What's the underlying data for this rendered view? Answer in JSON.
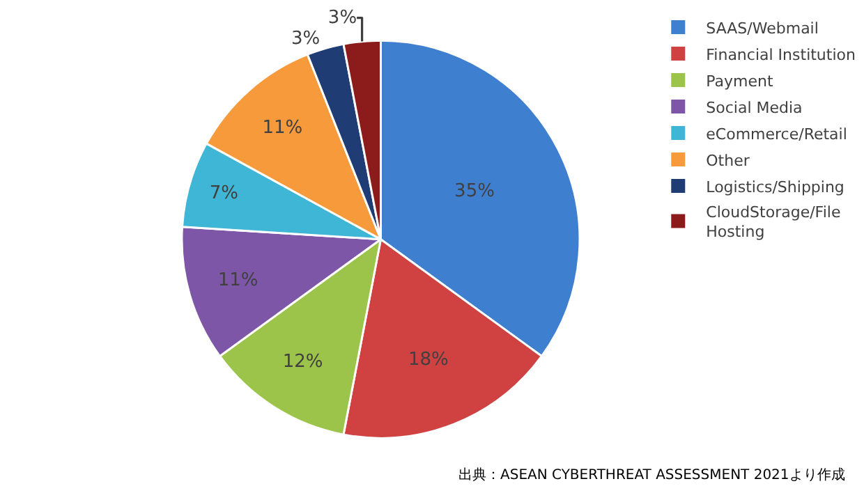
{
  "chart_data": {
    "type": "pie",
    "categories": [
      "SAAS/Webmail",
      "Financial Institution",
      "Payment",
      "Social Media",
      "eCommerce/Retail",
      "Other",
      "Logistics/Shipping",
      "CloudStorage/File Hosting"
    ],
    "values": [
      35,
      18,
      12,
      11,
      7,
      11,
      3,
      3
    ],
    "value_labels": [
      "35%",
      "18%",
      "12%",
      "11%",
      "7%",
      "11%",
      "3%",
      "3%"
    ],
    "colors": [
      "#3f7fd0",
      "#d04242",
      "#9cc44a",
      "#7e56a8",
      "#3fb6d6",
      "#f79a3c",
      "#1f3c74",
      "#8c1c1c"
    ],
    "legend": "right",
    "annotations": [
      "出典：ASEAN CYBERTHREAT ASSESSMENT 2021より作成"
    ]
  }
}
